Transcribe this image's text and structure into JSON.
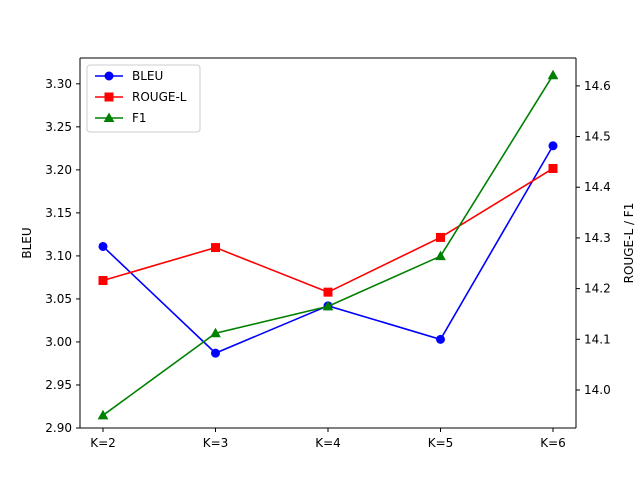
{
  "chart_data": {
    "type": "line",
    "title": "",
    "xlabel": "",
    "ylabel_left": "BLEU",
    "ylabel_right": "ROUGE-L / F1",
    "categories": [
      "K=2",
      "K=3",
      "K=4",
      "K=5",
      "K=6"
    ],
    "ylim_left": [
      2.9,
      3.33
    ],
    "yticks_left": [
      2.9,
      2.95,
      3.0,
      3.05,
      3.1,
      3.15,
      3.2,
      3.25,
      3.3
    ],
    "ylim_right": [
      13.925,
      14.655
    ],
    "yticks_right": [
      14.0,
      14.1,
      14.2,
      14.3,
      14.4,
      14.5,
      14.6
    ],
    "grid": false,
    "legend_position": "upper-left",
    "series": [
      {
        "name": "BLEU",
        "axis": "left",
        "color": "#0000ff",
        "marker": "circle",
        "values": [
          3.111,
          2.987,
          3.042,
          3.003,
          3.228
        ]
      },
      {
        "name": "ROUGE-L",
        "axis": "right",
        "color": "#ff0000",
        "marker": "square",
        "values": [
          14.216,
          14.281,
          14.193,
          14.301,
          14.437
        ]
      },
      {
        "name": "F1",
        "axis": "right",
        "color": "#008000",
        "marker": "triangle",
        "values": [
          13.95,
          14.112,
          14.165,
          14.264,
          14.621
        ]
      }
    ]
  }
}
